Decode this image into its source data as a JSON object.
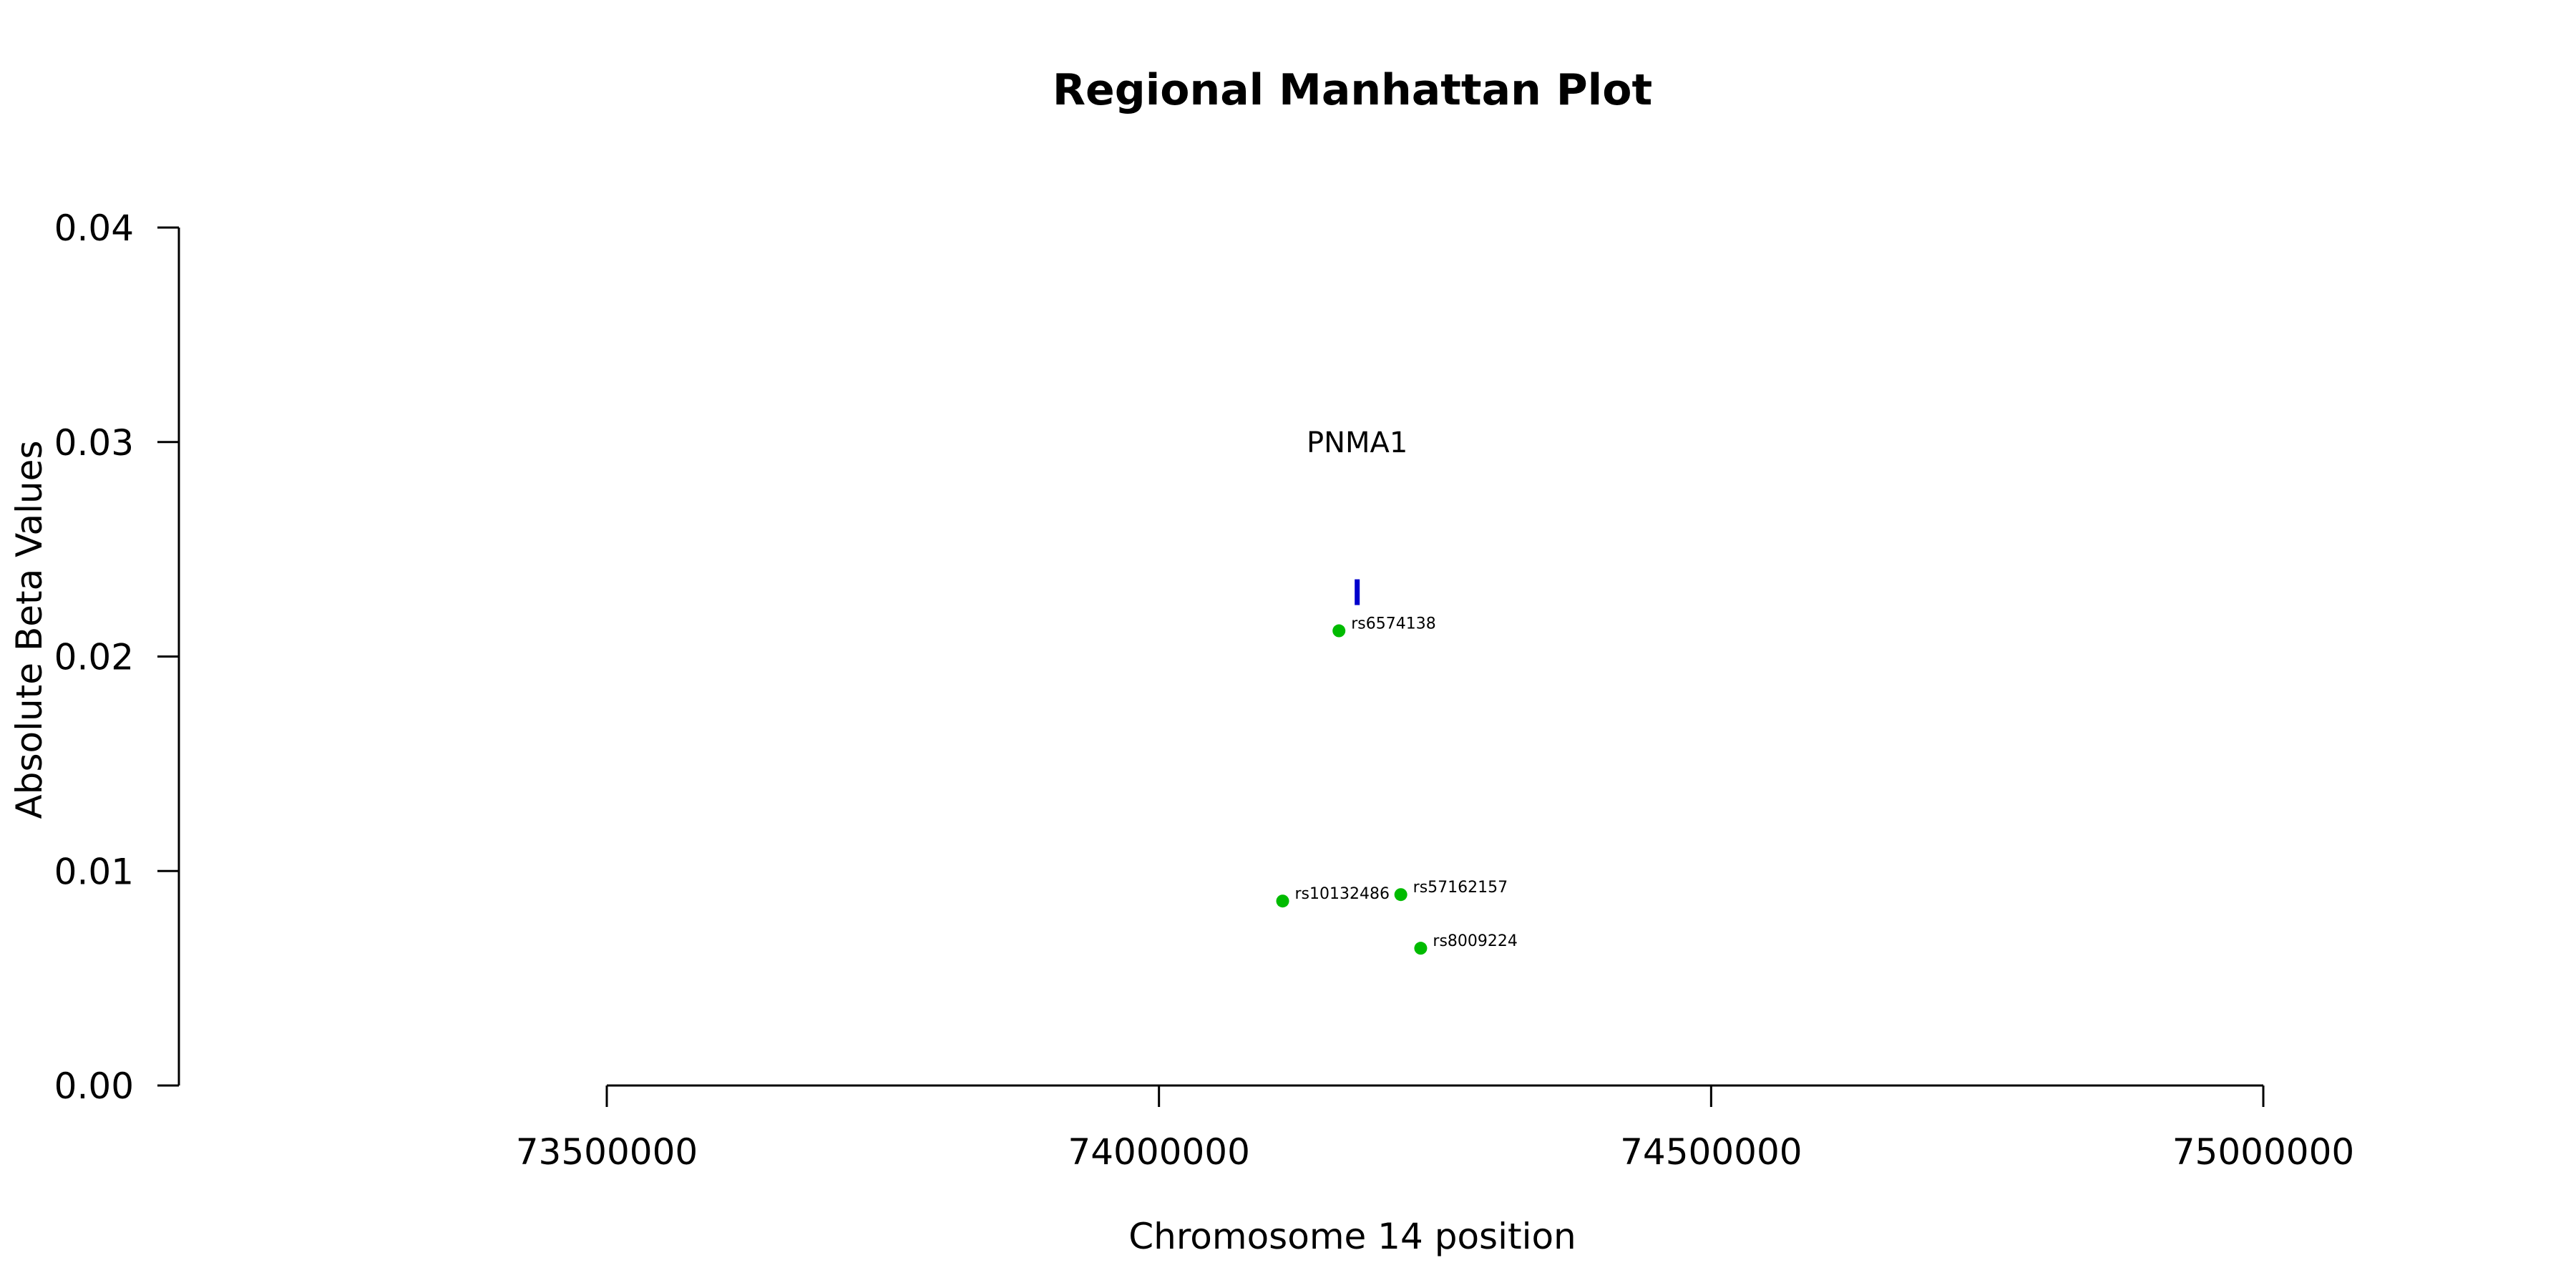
{
  "chart_data": {
    "type": "scatter",
    "title": "Regional Manhattan Plot",
    "xlabel": "Chromosome 14 position",
    "ylabel": "Absolute Beta Values",
    "xlim": [
      73500000,
      75000000
    ],
    "ylim": [
      0,
      0.04
    ],
    "x_ticks": [
      73500000,
      74000000,
      74500000,
      75000000
    ],
    "y_ticks": [
      "0.00",
      "0.01",
      "0.02",
      "0.03",
      "0.04"
    ],
    "grid": false,
    "point_color": "#00bb00",
    "points": [
      {
        "label": "rs6574138",
        "x": 74163000,
        "y": 0.0212
      },
      {
        "label": "rs10132486",
        "x": 74112000,
        "y": 0.0086
      },
      {
        "label": "rs57162157",
        "x": 74219000,
        "y": 0.0089
      },
      {
        "label": "rs8009224",
        "x": 74237000,
        "y": 0.0064
      }
    ],
    "genes": [
      {
        "name": "PNMA1",
        "x_start": 74178000,
        "x_end": 74181000,
        "y": 0.023,
        "color": "#0000cc"
      }
    ]
  }
}
